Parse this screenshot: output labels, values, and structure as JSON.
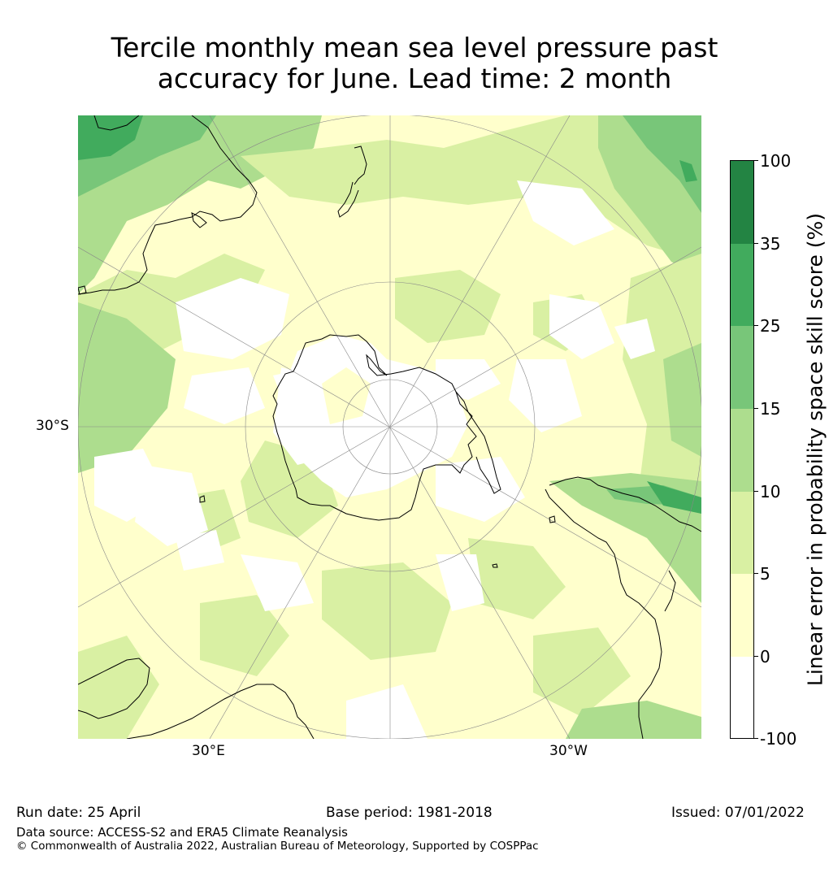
{
  "title_line1": "Tercile monthly mean sea level pressure past",
  "title_line2": "accuracy for June. Lead time: 2 month",
  "map": {
    "projection": "south-polar-stereographic",
    "labels": {
      "lat_left": "30°S",
      "lon_bottom_left": "30°E",
      "lon_bottom_right": "30°W"
    }
  },
  "colorbar": {
    "label": "Linear error in probability space skill score (%)",
    "ticks": [
      "100",
      "35",
      "25",
      "15",
      "10",
      "5",
      "0",
      "-100"
    ],
    "bins": [
      {
        "from": "-100",
        "to": "0",
        "color": "#ffffff"
      },
      {
        "from": "0",
        "to": "5",
        "color": "#ffffcc"
      },
      {
        "from": "5",
        "to": "10",
        "color": "#d9f0a3"
      },
      {
        "from": "10",
        "to": "15",
        "color": "#addd8e"
      },
      {
        "from": "15",
        "to": "25",
        "color": "#78c679"
      },
      {
        "from": "25",
        "to": "35",
        "color": "#41ab5d"
      },
      {
        "from": "35",
        "to": "100",
        "color": "#238443"
      }
    ]
  },
  "footer": {
    "run_date": "Run date: 25 April",
    "base_period": "Base period: 1981-2018",
    "issued": "Issued: 07/01/2022",
    "data_source": "Data source: ACCESS-S2 and ERA5 Climate Reanalysis",
    "copyright": "© Commonwealth of Australia 2022, Australian Bureau of Meteorology, Supported by COSPPac"
  }
}
